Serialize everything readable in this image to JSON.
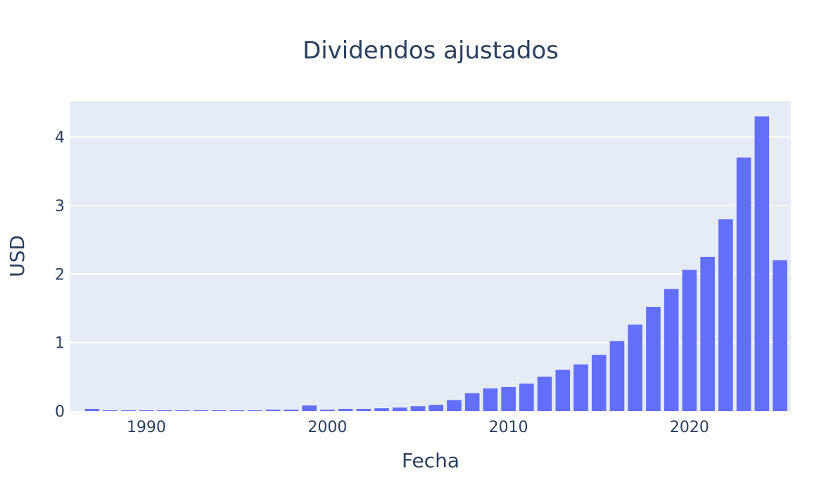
{
  "chart_data": {
    "type": "bar",
    "title": "Dividendos ajustados",
    "xlabel": "Fecha",
    "ylabel": "USD",
    "x": [
      1987,
      1988,
      1989,
      1990,
      1991,
      1992,
      1993,
      1994,
      1995,
      1996,
      1997,
      1998,
      1999,
      2000,
      2001,
      2002,
      2003,
      2004,
      2005,
      2006,
      2007,
      2008,
      2009,
      2010,
      2011,
      2012,
      2013,
      2014,
      2015,
      2016,
      2017,
      2018,
      2019,
      2020,
      2021,
      2022,
      2023,
      2024,
      2025
    ],
    "values": [
      0.03,
      0.01,
      0.01,
      0.01,
      0.01,
      0.01,
      0.01,
      0.01,
      0.01,
      0.01,
      0.02,
      0.02,
      0.08,
      0.02,
      0.03,
      0.03,
      0.04,
      0.05,
      0.07,
      0.09,
      0.16,
      0.26,
      0.33,
      0.35,
      0.4,
      0.5,
      0.6,
      0.68,
      0.82,
      1.02,
      1.26,
      1.52,
      1.78,
      2.06,
      2.25,
      2.8,
      3.7,
      4.3,
      2.2
    ],
    "xlim": [
      1985.8,
      2025.6
    ],
    "ylim": [
      0,
      4.52
    ],
    "xticks": [
      1990,
      2000,
      2010,
      2020
    ],
    "yticks": [
      0,
      1,
      2,
      3,
      4
    ],
    "grid": true,
    "colors": {
      "bar": "#636efa",
      "plot_bg": "#e5ecf6",
      "grid": "#ffffff",
      "text": "#2a3f5f"
    }
  }
}
